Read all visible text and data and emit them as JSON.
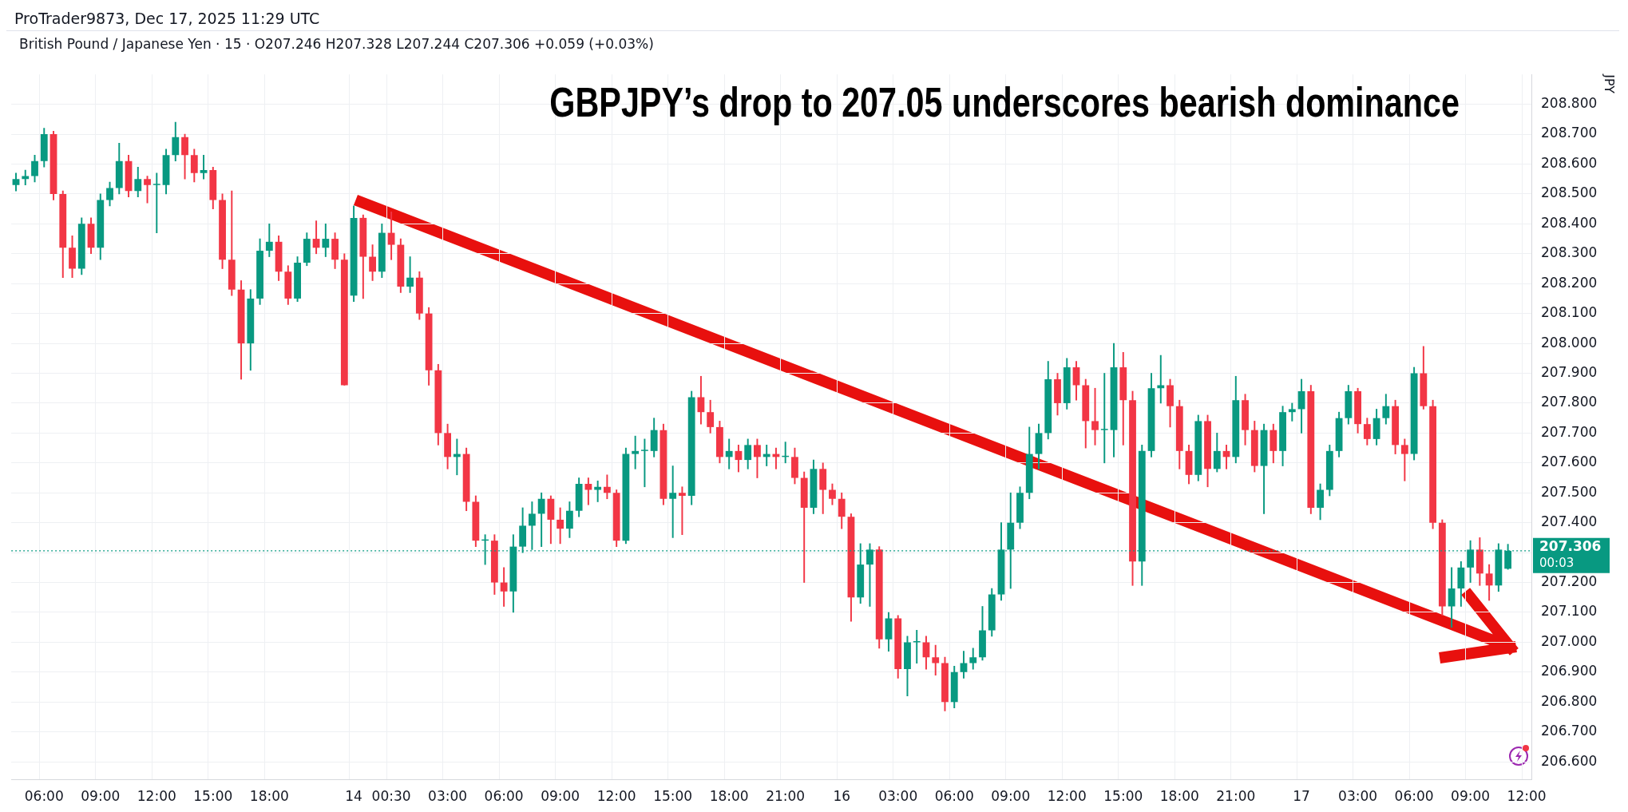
{
  "chart_data": {
    "type": "candlestick",
    "title": "GBPJPY’s drop to 207.05 underscores bearish dominance",
    "subtitle": "British Pound / Japanese Yen · 15 · O207.246 H207.328 L207.244 C207.306 +0.059 (+0.03%)",
    "ylabel": "JPY",
    "annotations": [
      "ProTrader9873, Dec 17, 2025 11:29 UTC",
      "00:03"
    ],
    "categories": [
      null,
      null,
      null,
      "06:00",
      null,
      null,
      null,
      null,
      null,
      "09:00",
      null,
      null,
      null,
      null,
      null,
      "12:00",
      null,
      null,
      null,
      null,
      null,
      "15:00",
      null,
      null,
      null,
      null,
      null,
      "18:00",
      null,
      null,
      null,
      null,
      null,
      null,
      null,
      null,
      "14",
      null,
      null,
      null,
      "00:30",
      null,
      null,
      null,
      null,
      null,
      "03:00",
      null,
      null,
      null,
      null,
      null,
      "06:00",
      null,
      null,
      null,
      null,
      null,
      "09:00",
      null,
      null,
      null,
      null,
      null,
      "12:00",
      null,
      null,
      null,
      null,
      null,
      "15:00",
      null,
      null,
      null,
      null,
      null,
      "18:00",
      null,
      null,
      null,
      null,
      null,
      "21:00",
      null,
      null,
      null,
      null,
      null,
      "16",
      null,
      null,
      null,
      null,
      null,
      "03:00",
      null,
      null,
      null,
      null,
      null,
      "06:00",
      null,
      null,
      null,
      null,
      null,
      "09:00",
      null,
      null,
      null,
      null,
      null,
      "12:00",
      null,
      null,
      null,
      null,
      null,
      "15:00",
      null,
      null,
      null,
      null,
      null,
      "18:00",
      null,
      null,
      null,
      null,
      null,
      "21:00",
      null,
      null,
      null,
      null,
      null,
      null,
      "17",
      null,
      null,
      null,
      null,
      null,
      "03:00",
      null,
      null,
      null,
      null,
      null,
      "06:00",
      null,
      null,
      null,
      null,
      null,
      "09:00",
      null,
      null,
      null,
      null,
      null,
      "12:00"
    ],
    "ohlc": [
      [
        208.53,
        208.57,
        208.51,
        208.55
      ],
      [
        208.55,
        208.58,
        208.53,
        208.56
      ],
      [
        208.56,
        208.63,
        208.54,
        208.61
      ],
      [
        208.61,
        208.72,
        208.59,
        208.7
      ],
      [
        208.7,
        208.71,
        208.48,
        208.5
      ],
      [
        208.5,
        208.51,
        208.22,
        208.32
      ],
      [
        208.32,
        208.36,
        208.22,
        208.25
      ],
      [
        208.25,
        208.42,
        208.23,
        208.4
      ],
      [
        208.4,
        208.42,
        208.3,
        208.32
      ],
      [
        208.32,
        208.5,
        208.28,
        208.48
      ],
      [
        208.48,
        208.54,
        208.46,
        208.52
      ],
      [
        208.52,
        208.67,
        208.5,
        208.61
      ],
      [
        208.61,
        208.63,
        208.49,
        208.51
      ],
      [
        208.51,
        208.59,
        208.49,
        208.55
      ],
      [
        208.55,
        208.56,
        208.47,
        208.53
      ],
      [
        208.53,
        208.57,
        208.37,
        208.53
      ],
      [
        208.53,
        208.65,
        208.5,
        208.63
      ],
      [
        208.63,
        208.74,
        208.61,
        208.69
      ],
      [
        208.69,
        208.7,
        208.55,
        208.63
      ],
      [
        208.63,
        208.65,
        208.54,
        208.57
      ],
      [
        208.57,
        208.63,
        208.55,
        208.58
      ],
      [
        208.58,
        208.59,
        208.45,
        208.48
      ],
      [
        208.48,
        208.5,
        208.25,
        208.28
      ],
      [
        208.28,
        208.51,
        208.16,
        208.18
      ],
      [
        208.18,
        208.21,
        207.88,
        208.0
      ],
      [
        208.0,
        208.18,
        207.91,
        208.15
      ],
      [
        208.15,
        208.35,
        208.13,
        208.31
      ],
      [
        208.31,
        208.4,
        208.29,
        208.34
      ],
      [
        208.34,
        208.36,
        208.21,
        208.24
      ],
      [
        208.24,
        208.26,
        208.13,
        208.15
      ],
      [
        208.15,
        208.29,
        208.14,
        208.27
      ],
      [
        208.27,
        208.37,
        208.26,
        208.35
      ],
      [
        208.35,
        208.41,
        208.3,
        208.32
      ],
      [
        208.32,
        208.4,
        208.29,
        208.35
      ],
      [
        208.35,
        208.37,
        208.25,
        208.28
      ],
      [
        208.28,
        208.3,
        207.86,
        207.86
      ],
      [
        208.16,
        208.46,
        208.14,
        208.42
      ],
      [
        208.42,
        208.43,
        208.15,
        208.29
      ],
      [
        208.29,
        208.33,
        208.21,
        208.24
      ],
      [
        208.24,
        208.4,
        208.22,
        208.37
      ],
      [
        208.37,
        208.44,
        208.28,
        208.33
      ],
      [
        208.33,
        208.35,
        208.17,
        208.19
      ],
      [
        208.19,
        208.29,
        208.17,
        208.22
      ],
      [
        208.22,
        208.24,
        208.08,
        208.1
      ],
      [
        208.1,
        208.12,
        207.86,
        207.91
      ],
      [
        207.91,
        207.93,
        207.66,
        207.7
      ],
      [
        207.7,
        207.73,
        207.58,
        207.62
      ],
      [
        207.62,
        207.68,
        207.56,
        207.63
      ],
      [
        207.63,
        207.65,
        207.44,
        207.47
      ],
      [
        207.47,
        207.49,
        207.32,
        207.34
      ],
      [
        207.34,
        207.36,
        207.26,
        207.34
      ],
      [
        207.34,
        207.36,
        207.16,
        207.2
      ],
      [
        207.2,
        207.25,
        207.12,
        207.17
      ],
      [
        207.17,
        207.36,
        207.1,
        207.32
      ],
      [
        207.32,
        207.45,
        207.3,
        207.39
      ],
      [
        207.39,
        207.47,
        207.31,
        207.43
      ],
      [
        207.43,
        207.5,
        207.32,
        207.48
      ],
      [
        207.48,
        207.49,
        207.33,
        207.41
      ],
      [
        207.41,
        207.45,
        207.33,
        207.38
      ],
      [
        207.38,
        207.47,
        207.35,
        207.44
      ],
      [
        207.44,
        207.55,
        207.42,
        207.53
      ],
      [
        207.53,
        207.55,
        207.46,
        207.51
      ],
      [
        207.51,
        207.54,
        207.47,
        207.52
      ],
      [
        207.52,
        207.56,
        207.48,
        207.5
      ],
      [
        207.5,
        207.51,
        207.32,
        207.34
      ],
      [
        207.34,
        207.65,
        207.33,
        207.63
      ],
      [
        207.63,
        207.69,
        207.58,
        207.64
      ],
      [
        207.64,
        207.68,
        207.52,
        207.64
      ],
      [
        207.64,
        207.75,
        207.62,
        207.71
      ],
      [
        207.71,
        207.73,
        207.46,
        207.48
      ],
      [
        207.48,
        207.59,
        207.35,
        207.5
      ],
      [
        207.5,
        207.52,
        207.36,
        207.49
      ],
      [
        207.49,
        207.84,
        207.46,
        207.82
      ],
      [
        207.82,
        207.89,
        207.73,
        207.77
      ],
      [
        207.77,
        207.81,
        207.7,
        207.72
      ],
      [
        207.72,
        207.74,
        207.6,
        207.62
      ],
      [
        207.62,
        207.68,
        207.58,
        207.64
      ],
      [
        207.64,
        207.66,
        207.57,
        207.61
      ],
      [
        207.61,
        207.68,
        207.58,
        207.66
      ],
      [
        207.66,
        207.68,
        207.55,
        207.62
      ],
      [
        207.62,
        207.66,
        207.59,
        207.63
      ],
      [
        207.63,
        207.65,
        207.58,
        207.62
      ],
      [
        207.62,
        207.67,
        207.6,
        207.62
      ],
      [
        207.62,
        207.65,
        207.53,
        207.55
      ],
      [
        207.55,
        207.57,
        207.2,
        207.45
      ],
      [
        207.45,
        207.61,
        207.43,
        207.58
      ],
      [
        207.58,
        207.6,
        207.43,
        207.51
      ],
      [
        207.51,
        207.53,
        207.46,
        207.48
      ],
      [
        207.48,
        207.5,
        207.38,
        207.42
      ],
      [
        207.42,
        207.43,
        207.07,
        207.15
      ],
      [
        207.15,
        207.33,
        207.13,
        207.26
      ],
      [
        207.26,
        207.33,
        207.12,
        207.31
      ],
      [
        207.31,
        207.32,
        206.98,
        207.01
      ],
      [
        207.01,
        207.1,
        206.97,
        207.08
      ],
      [
        207.08,
        207.09,
        206.88,
        206.91
      ],
      [
        206.91,
        207.02,
        206.82,
        207.0
      ],
      [
        207.0,
        207.04,
        206.93,
        207.0
      ],
      [
        207.0,
        207.02,
        206.91,
        206.95
      ],
      [
        206.95,
        206.99,
        206.89,
        206.93
      ],
      [
        206.93,
        206.95,
        206.77,
        206.8
      ],
      [
        206.8,
        206.92,
        206.78,
        206.9
      ],
      [
        206.9,
        206.97,
        206.88,
        206.93
      ],
      [
        206.93,
        206.98,
        206.91,
        206.95
      ],
      [
        206.95,
        207.12,
        206.94,
        207.04
      ],
      [
        207.04,
        207.18,
        207.02,
        207.16
      ],
      [
        207.16,
        207.4,
        207.14,
        207.31
      ],
      [
        207.31,
        207.5,
        207.18,
        207.4
      ],
      [
        207.4,
        207.52,
        207.38,
        207.5
      ],
      [
        207.5,
        207.72,
        207.48,
        207.63
      ],
      [
        207.63,
        207.73,
        207.58,
        207.7
      ],
      [
        207.7,
        207.94,
        207.68,
        207.88
      ],
      [
        207.88,
        207.9,
        207.76,
        207.8
      ],
      [
        207.8,
        207.95,
        207.78,
        207.92
      ],
      [
        207.92,
        207.94,
        207.81,
        207.86
      ],
      [
        207.86,
        207.88,
        207.65,
        207.74
      ],
      [
        207.74,
        207.85,
        207.66,
        207.71
      ],
      [
        207.71,
        207.9,
        207.6,
        207.71
      ],
      [
        207.71,
        208.0,
        207.62,
        207.92
      ],
      [
        207.92,
        207.97,
        207.66,
        207.81
      ],
      [
        207.81,
        207.84,
        207.19,
        207.27
      ],
      [
        207.27,
        207.66,
        207.19,
        207.64
      ],
      [
        207.64,
        207.9,
        207.62,
        207.85
      ],
      [
        207.85,
        207.96,
        207.8,
        207.86
      ],
      [
        207.86,
        207.88,
        207.72,
        207.79
      ],
      [
        207.79,
        207.81,
        207.58,
        207.64
      ],
      [
        207.64,
        207.66,
        207.53,
        207.56
      ],
      [
        207.56,
        207.76,
        207.54,
        207.74
      ],
      [
        207.74,
        207.76,
        207.52,
        207.58
      ],
      [
        207.58,
        207.7,
        207.57,
        207.64
      ],
      [
        207.64,
        207.66,
        207.58,
        207.62
      ],
      [
        207.62,
        207.89,
        207.6,
        207.81
      ],
      [
        207.81,
        207.83,
        207.66,
        207.71
      ],
      [
        207.71,
        207.74,
        207.57,
        207.59
      ],
      [
        207.59,
        207.73,
        207.43,
        207.71
      ],
      [
        207.71,
        207.73,
        207.6,
        207.64
      ],
      [
        207.64,
        207.79,
        207.59,
        207.77
      ],
      [
        207.77,
        207.8,
        207.74,
        207.78
      ],
      [
        207.78,
        207.88,
        207.7,
        207.84
      ],
      [
        207.84,
        207.86,
        207.43,
        207.45
      ],
      [
        207.45,
        207.53,
        207.41,
        207.51
      ],
      [
        207.51,
        207.66,
        207.49,
        207.64
      ],
      [
        207.64,
        207.77,
        207.62,
        207.75
      ],
      [
        207.75,
        207.86,
        207.73,
        207.84
      ],
      [
        207.84,
        207.85,
        207.7,
        207.73
      ],
      [
        207.73,
        207.75,
        207.66,
        207.68
      ],
      [
        207.68,
        207.78,
        207.66,
        207.75
      ],
      [
        207.75,
        207.83,
        207.73,
        207.79
      ],
      [
        207.79,
        207.81,
        207.63,
        207.66
      ],
      [
        207.66,
        207.68,
        207.54,
        207.63
      ],
      [
        207.63,
        207.92,
        207.61,
        207.9
      ],
      [
        207.9,
        207.99,
        207.78,
        207.79
      ],
      [
        207.79,
        207.81,
        207.38,
        207.4
      ],
      [
        207.4,
        207.41,
        207.09,
        207.12
      ],
      [
        207.12,
        207.25,
        207.05,
        207.18
      ],
      [
        207.18,
        207.27,
        207.12,
        207.25
      ],
      [
        207.25,
        207.34,
        207.2,
        207.31
      ],
      [
        207.31,
        207.35,
        207.19,
        207.23
      ],
      [
        207.23,
        207.26,
        207.14,
        207.19
      ],
      [
        207.19,
        207.33,
        207.17,
        207.31
      ],
      [
        207.246,
        207.328,
        207.244,
        207.306
      ],
      null,
      null
    ],
    "colors": [
      "#089981",
      "#089981",
      "#089981",
      "#089981",
      "#f23645",
      "#f23645",
      "#f23645",
      "#089981",
      "#f23645",
      "#089981",
      "#089981",
      "#089981",
      "#f23645",
      "#089981",
      "#f23645",
      "#089981",
      "#089981",
      "#089981",
      "#f23645",
      "#f23645",
      "#089981",
      "#f23645",
      "#f23645",
      "#f23645",
      "#f23645",
      "#089981",
      "#089981",
      "#089981",
      "#f23645",
      "#f23645",
      "#089981",
      "#089981",
      "#f23645",
      "#089981",
      "#f23645",
      "#f23645",
      "#089981",
      "#f23645",
      "#f23645",
      "#089981",
      "#f23645",
      "#f23645",
      "#089981",
      "#f23645",
      "#f23645",
      "#f23645",
      "#f23645",
      "#089981",
      "#f23645",
      "#f23645",
      "#089981",
      "#f23645",
      "#f23645",
      "#089981",
      "#089981",
      "#089981",
      "#089981",
      "#f23645",
      "#f23645",
      "#089981",
      "#089981",
      "#f23645",
      "#089981",
      "#f23645",
      "#f23645",
      "#089981",
      "#089981",
      "#089981",
      "#089981",
      "#f23645",
      "#089981",
      "#f23645",
      "#089981",
      "#f23645",
      "#f23645",
      "#f23645",
      "#089981",
      "#f23645",
      "#089981",
      "#f23645",
      "#089981",
      "#f23645",
      "#089981",
      "#f23645",
      "#f23645",
      "#089981",
      "#f23645",
      "#f23645",
      "#f23645",
      "#f23645",
      "#089981",
      "#089981",
      "#f23645",
      "#089981",
      "#f23645",
      "#089981",
      "#089981",
      "#f23645",
      "#f23645",
      "#f23645",
      "#089981",
      "#089981",
      "#089981",
      "#089981",
      "#089981",
      "#089981",
      "#089981",
      "#089981",
      "#089981",
      "#089981",
      "#089981",
      "#f23645",
      "#089981",
      "#f23645",
      "#f23645",
      "#f23645",
      "#089981",
      "#089981",
      "#f23645",
      "#f23645",
      "#089981",
      "#089981",
      "#089981",
      "#f23645",
      "#f23645",
      "#f23645",
      "#089981",
      "#f23645",
      "#089981",
      "#f23645",
      "#089981",
      "#f23645",
      "#f23645",
      "#089981",
      "#f23645",
      "#089981",
      "#089981",
      "#089981",
      "#f23645",
      "#089981",
      "#089981",
      "#089981",
      "#089981",
      "#f23645",
      "#f23645",
      "#089981",
      "#089981",
      "#f23645",
      "#f23645",
      "#089981",
      "#f23645",
      "#f23645",
      "#f23645",
      "#089981",
      "#089981",
      "#089981",
      "#f23645",
      "#f23645",
      "#089981",
      "#089981",
      null,
      null
    ],
    "ylim": [
      206.54,
      208.9
    ],
    "yticks": [
      {
        "value": 206.6,
        "label": "206.600"
      },
      {
        "value": 206.7,
        "label": "206.700"
      },
      {
        "value": 206.8,
        "label": "206.800"
      },
      {
        "value": 206.9,
        "label": "206.900"
      },
      {
        "value": 207.0,
        "label": "207.000"
      },
      {
        "value": 207.1,
        "label": "207.100"
      },
      {
        "value": 207.2,
        "label": "207.200"
      },
      {
        "value": 207.3,
        "label": null
      },
      {
        "value": 207.4,
        "label": "207.400"
      },
      {
        "value": 207.5,
        "label": "207.500"
      },
      {
        "value": 207.6,
        "label": "207.600"
      },
      {
        "value": 207.7,
        "label": "207.700"
      },
      {
        "value": 207.8,
        "label": "207.800"
      },
      {
        "value": 207.9,
        "label": "207.900"
      },
      {
        "value": 208.0,
        "label": "208.000"
      },
      {
        "value": 208.1,
        "label": "208.100"
      },
      {
        "value": 208.2,
        "label": "208.200"
      },
      {
        "value": 208.3,
        "label": "208.300"
      },
      {
        "value": 208.4,
        "label": "208.400"
      },
      {
        "value": 208.5,
        "label": "208.500"
      },
      {
        "value": 208.6,
        "label": "208.600"
      },
      {
        "value": 208.7,
        "label": "208.700"
      },
      {
        "value": 208.8,
        "label": "208.800"
      }
    ],
    "ref_lines": [
      {
        "axis": "y",
        "value": 207.306,
        "label": "207.306",
        "color": "#089981",
        "line_style": "dotted"
      }
    ],
    "grid": true,
    "legend": false
  }
}
